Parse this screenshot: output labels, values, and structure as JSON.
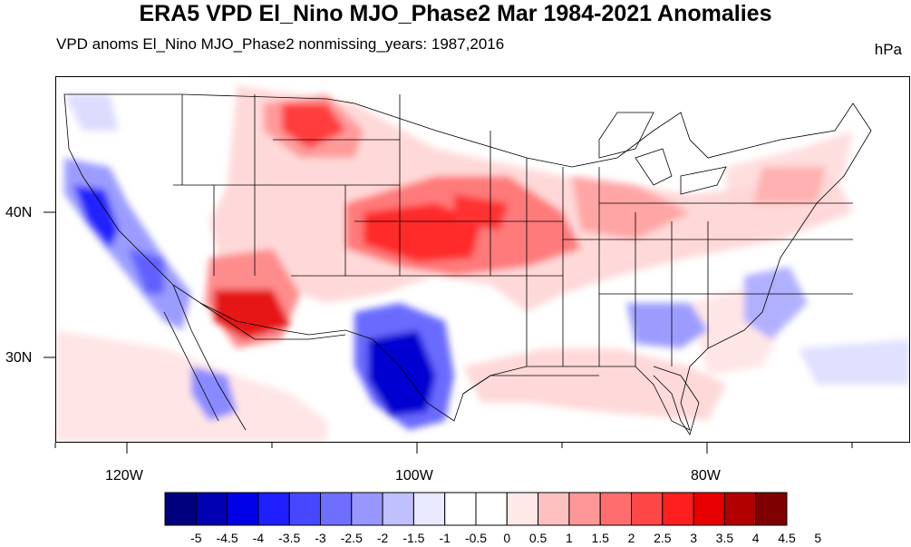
{
  "title": "ERA5 VPD El_Nino MJO_Phase2 Mar 1984-2021 Anomalies",
  "subtitle": "VPD anoms El_Nino MJO_Phase2 nonmissing_years: 1987,2016",
  "units": "hPa",
  "lat_labels": [
    "40N",
    "30N"
  ],
  "lon_labels": [
    "120W",
    "100W",
    "80W"
  ],
  "colorbar": {
    "colors": [
      "#00007f",
      "#0000b2",
      "#0000e6",
      "#1f1fff",
      "#4747ff",
      "#6e6eff",
      "#9797ff",
      "#c0c0ff",
      "#e8e8ff",
      "#ffffff",
      "#ffffff",
      "#ffe8e8",
      "#ffc0c0",
      "#ff9797",
      "#ff6e6e",
      "#ff4747",
      "#ff1f1f",
      "#e60000",
      "#b20000",
      "#7f0000"
    ],
    "tick_labels": [
      "-5",
      "-4.5",
      "-4",
      "-3.5",
      "-3",
      "-2.5",
      "-2",
      "-1.5",
      "-1",
      "-0.5",
      "0",
      "0.5",
      "1",
      "1.5",
      "2",
      "2.5",
      "3",
      "3.5",
      "4",
      "4.5",
      "5"
    ]
  }
}
